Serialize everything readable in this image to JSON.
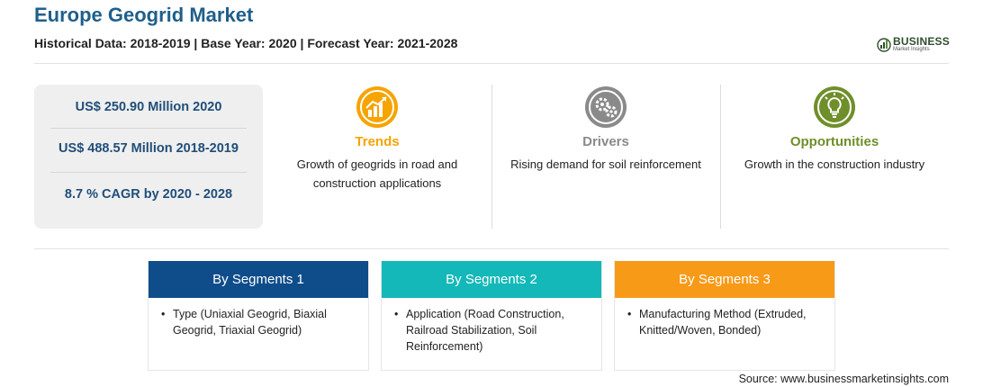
{
  "header": {
    "title": "Europe Geogrid Market",
    "subtitle": "Historical Data: 2018-2019 | Base Year: 2020 | Forecast Year: 2021-2028"
  },
  "logo": {
    "name": "BUSINESS",
    "tagline": "Market Insights",
    "icon": "bar-chart-icon",
    "color": "#2f4f2f"
  },
  "stats": [
    "US$ 250.90 Million 2020",
    "US$ 488.57 Million 2018-2019",
    "8.7 % CAGR by 2020 - 2028"
  ],
  "highlights": {
    "trends": {
      "title": "Trends",
      "text": "Growth of geogrids in road and construction applications",
      "icon": "trend-chart-icon",
      "color": "#f5a400"
    },
    "drivers": {
      "title": "Drivers",
      "text": "Rising demand for soil reinforcement",
      "icon": "gears-icon",
      "color": "#8a8a8a"
    },
    "opportunities": {
      "title": "Opportunities",
      "text": "Growth in the construction industry",
      "icon": "lightbulb-icon",
      "color": "#6f8f2a"
    }
  },
  "segments": [
    {
      "title": "By Segments 1",
      "bullet": "•",
      "text": "Type (Uniaxial Geogrid, Biaxial Geogrid, Triaxial Geogrid)",
      "color": "#0f4c8a"
    },
    {
      "title": "By Segments 2",
      "bullet": "•",
      "text": "Application (Road Construction, Railroad Stabilization, Soil Reinforcement)",
      "color": "#14b8b8"
    },
    {
      "title": "By Segments 3",
      "bullet": "•",
      "text": "Manufacturing Method (Extruded, Knitted/Woven, Bonded)",
      "color": "#f79a18"
    }
  ],
  "footer": {
    "source": "Source: www.businessmarketinsights.com"
  }
}
